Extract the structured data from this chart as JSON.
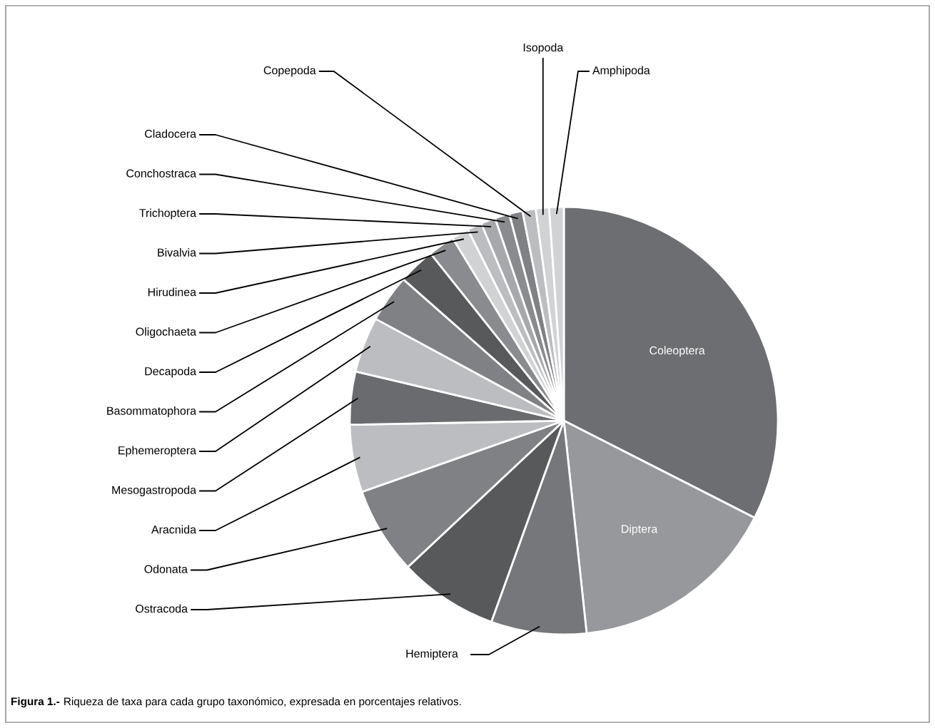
{
  "chart_data": {
    "type": "pie",
    "categories": [
      "Coleoptera",
      "Diptera",
      "Hemiptera",
      "Ostracoda",
      "Odonata",
      "Aracnida",
      "Mesogastropoda",
      "Ephemeroptera",
      "Basommatophora",
      "Decapoda",
      "Oligochaeta",
      "Hirudinea",
      "Bivalvia",
      "Trichoptera",
      "Conchostraca",
      "Cladocera",
      "Copepoda",
      "Isopoda",
      "Amphipoda"
    ],
    "values": [
      32.5,
      15.8,
      7.2,
      7.5,
      6.6,
      5.1,
      4.0,
      4.2,
      3.6,
      2.8,
      2.0,
      1.3,
      1.1,
      1.1,
      1.1,
      1.0,
      1.0,
      1.0,
      1.1
    ],
    "colors": [
      "#6d6e71",
      "#97989b",
      "#76777a",
      "#58595b",
      "#808184",
      "#bcbdc0",
      "#6a6b6e",
      "#bcbdc0",
      "#808184",
      "#58595b",
      "#8a8b8e",
      "#d1d2d4",
      "#bcbdc0",
      "#a7a8ab",
      "#8a8b8e",
      "#808184",
      "#bcbdc0",
      "#d1d2d4",
      "#d1d2d4"
    ],
    "annotations": [
      "Figura 1.-",
      "Riqueza de taxa para cada grupo taxonómico, expresada en porcentajes relativos."
    ]
  }
}
